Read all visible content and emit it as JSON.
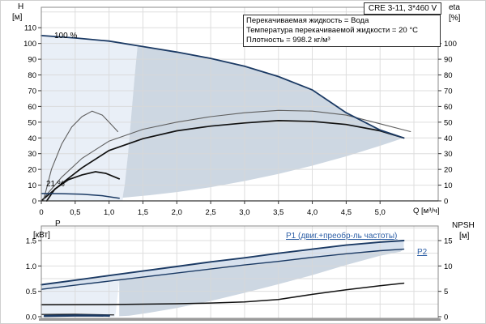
{
  "window": {
    "title_box": "CRE 3-11, 3*460 V"
  },
  "info_box": {
    "line1": "Перекачиваемая жидкость = Вода",
    "line2": "Температура перекачиваемой жидкости = 20 °C",
    "line3": "Плотность = 998.2 кг/м³"
  },
  "labels": {
    "h_axis": "H",
    "h_unit": "[м]",
    "eta_axis": "eta",
    "eta_unit": "[%]",
    "q_axis": "Q [м³/ч]",
    "p_axis": "P",
    "p_unit": "[кВт]",
    "npsh_axis": "NPSH",
    "npsh_unit": "[м]",
    "speed_100": "100 %",
    "speed_21": "21 %",
    "p1_curve": "P1 (двиг.+преобр-ль частоты)",
    "p2_curve": "P2"
  },
  "colors": {
    "navy_curve": "#1b3a64",
    "gray_curve": "#5f5f5f",
    "black_curve": "#111111",
    "light_fill": "#e9eff7",
    "dark_fill": "#cdd7e2",
    "band_fill": "#d7e1ee",
    "grid": "#d8d8d8",
    "frame": "#8a8a8a",
    "axis_dark": "#333333",
    "label_blue": "#2d5fa6",
    "bottom_bar": "#9a9a9a"
  },
  "chart_data": [
    {
      "type": "line",
      "name": "qh-eta-chart",
      "title": "CRE 3-11, 3*460 V",
      "xlabel": "Q [м³/ч]",
      "ylabel_left": "H [м]",
      "ylabel_right": "eta [%]",
      "x_range": [
        0,
        5.86
      ],
      "y_range": [
        0,
        123
      ],
      "x_axis": {
        "values": [
          0,
          0.5,
          1,
          1.5,
          2,
          2.5,
          3,
          3.5,
          4,
          4.5,
          5
        ],
        "labels": [
          "0",
          "0,5",
          "1,0",
          "1,5",
          "2,0",
          "2,5",
          "3,0",
          "3,5",
          "4,0",
          "4,5",
          "5,0"
        ],
        "grid": [
          0.5,
          1,
          1.5,
          2,
          2.5,
          3,
          3.5,
          4,
          4.5,
          5,
          5.5
        ]
      },
      "y_left": {
        "values": [
          0,
          10,
          20,
          30,
          40,
          50,
          60,
          70,
          80,
          90,
          100,
          110
        ],
        "grid": [
          10,
          20,
          30,
          40,
          50,
          60,
          70,
          80,
          90,
          100,
          110,
          120
        ]
      },
      "y_right": {
        "values": [
          0,
          10,
          20,
          30,
          40,
          50,
          60,
          70,
          80,
          90,
          100
        ]
      },
      "regions": [
        {
          "name": "speed-envelope-light",
          "color": "#e9eff7",
          "points": [
            [
              0,
              0
            ],
            [
              0,
              105
            ],
            [
              0.5,
              103.5
            ],
            [
              1,
              101.5
            ],
            [
              1.42,
              98.3
            ],
            [
              1.38,
              80
            ],
            [
              1.33,
              55
            ],
            [
              1.28,
              30
            ],
            [
              1.23,
              10
            ],
            [
              1.2,
              0
            ]
          ]
        },
        {
          "name": "duty-range-dark",
          "color": "#cdd7e2",
          "points": [
            [
              1.42,
              98.3
            ],
            [
              1.5,
              98
            ],
            [
              2,
              94.5
            ],
            [
              2.5,
              90.5
            ],
            [
              3,
              85.5
            ],
            [
              3.5,
              79
            ],
            [
              4,
              70.5
            ],
            [
              4.5,
              56
            ],
            [
              5,
              45
            ],
            [
              5.35,
              40
            ],
            [
              5,
              35
            ],
            [
              4.5,
              28.3
            ],
            [
              4,
              22.4
            ],
            [
              3.5,
              17.1
            ],
            [
              3,
              12.6
            ],
            [
              2.5,
              8.7
            ],
            [
              2,
              5.6
            ],
            [
              1.6,
              3.6
            ],
            [
              1.2,
              2
            ],
            [
              1.23,
              10
            ],
            [
              1.28,
              30
            ],
            [
              1.33,
              55
            ],
            [
              1.38,
              80
            ]
          ]
        }
      ],
      "series": [
        {
          "name": "eta-pump-100",
          "color": "#5f5f5f",
          "width": 1.1,
          "axis": "eta",
          "points": [
            [
              0,
              0
            ],
            [
              0.3,
              15
            ],
            [
              0.6,
              27
            ],
            [
              1,
              38
            ],
            [
              1.5,
              45.5
            ],
            [
              2,
              50
            ],
            [
              2.5,
              53.5
            ],
            [
              3,
              56
            ],
            [
              3.5,
              57.5
            ],
            [
              4,
              57
            ],
            [
              4.5,
              54.5
            ],
            [
              5,
              49
            ],
            [
              5.45,
              44
            ]
          ]
        },
        {
          "name": "eta-total-100",
          "color": "#111111",
          "width": 1.7,
          "axis": "eta",
          "points": [
            [
              0,
              0
            ],
            [
              0.3,
              11
            ],
            [
              0.6,
              21
            ],
            [
              1,
              32
            ],
            [
              1.5,
              39.5
            ],
            [
              2,
              44.5
            ],
            [
              2.5,
              47.5
            ],
            [
              3,
              49.5
            ],
            [
              3.5,
              51
            ],
            [
              4,
              50.5
            ],
            [
              4.5,
              48.5
            ],
            [
              5,
              44.5
            ],
            [
              5.35,
              40
            ]
          ]
        },
        {
          "name": "h-100",
          "color": "#1b3a64",
          "width": 1.8,
          "axis": "h",
          "points": [
            [
              0,
              105
            ],
            [
              0.5,
              103.5
            ],
            [
              1,
              101.5
            ],
            [
              1.5,
              98
            ],
            [
              2,
              94.5
            ],
            [
              2.5,
              90.5
            ],
            [
              3,
              85.5
            ],
            [
              3.5,
              79
            ],
            [
              4,
              70.5
            ],
            [
              4.5,
              56
            ],
            [
              5,
              45
            ],
            [
              5.35,
              40
            ]
          ]
        },
        {
          "name": "eta-pump-21",
          "color": "#5f5f5f",
          "width": 1.1,
          "axis": "eta",
          "points": [
            [
              0.03,
              0
            ],
            [
              0.15,
              20
            ],
            [
              0.3,
              36
            ],
            [
              0.45,
              47
            ],
            [
              0.6,
              53.5
            ],
            [
              0.75,
              57
            ],
            [
              0.9,
              54.5
            ],
            [
              1.0,
              50
            ],
            [
              1.13,
              44
            ]
          ]
        },
        {
          "name": "eta-total-21",
          "color": "#111111",
          "width": 1.7,
          "axis": "eta",
          "points": [
            [
              0.08,
              0
            ],
            [
              0.2,
              7.5
            ],
            [
              0.4,
              13.5
            ],
            [
              0.6,
              16.5
            ],
            [
              0.8,
              18.5
            ],
            [
              0.95,
              17.5
            ],
            [
              1.15,
              14
            ]
          ]
        },
        {
          "name": "h-21",
          "color": "#1b3a64",
          "width": 1.5,
          "axis": "h",
          "points": [
            [
              0,
              4.7
            ],
            [
              0.3,
              4.6
            ],
            [
              0.6,
              4.2
            ],
            [
              0.9,
              3.3
            ],
            [
              1.15,
              1.7
            ]
          ]
        }
      ]
    },
    {
      "type": "line",
      "name": "power-npsh-chart",
      "xlabel": "",
      "ylabel_left": "P [кВт]",
      "ylabel_right": "NPSH [м]",
      "x_range": [
        0,
        5.86
      ],
      "y_range_p": [
        0,
        1.79
      ],
      "y_range_npsh": [
        0,
        17.9
      ],
      "x_axis": {
        "values": [],
        "labels": [],
        "grid": [
          0.5,
          1,
          1.5,
          2,
          2.5,
          3,
          3.5,
          4,
          4.5,
          5,
          5.5
        ]
      },
      "y_left": {
        "values": [
          0,
          0.5,
          1,
          1.5
        ],
        "labels": [
          "0.0",
          "0.5",
          "1.0",
          "1.5"
        ],
        "grid": [
          0.25,
          0.5,
          0.75,
          1,
          1.25,
          1.5,
          1.75
        ]
      },
      "y_right": {
        "values": [
          0,
          5,
          10,
          15
        ],
        "labels": [
          "0",
          "5",
          "10",
          "15"
        ]
      },
      "regions": [
        {
          "name": "p1-p2-band",
          "color": "#d7e1ee",
          "points": [
            [
              0,
              0.63
            ],
            [
              0.5,
              0.72
            ],
            [
              1,
              0.81
            ],
            [
              1.5,
              0.9
            ],
            [
              2,
              0.99
            ],
            [
              2.5,
              1.08
            ],
            [
              3,
              1.16
            ],
            [
              3.5,
              1.25
            ],
            [
              4,
              1.33
            ],
            [
              4.5,
              1.41
            ],
            [
              5,
              1.47
            ],
            [
              5.35,
              1.5
            ],
            [
              5.35,
              1.33
            ],
            [
              5,
              1.3
            ],
            [
              4.5,
              1.24
            ],
            [
              4,
              1.17
            ],
            [
              3.5,
              1.09
            ],
            [
              3,
              1.02
            ],
            [
              2.5,
              0.94
            ],
            [
              2,
              0.86
            ],
            [
              1.5,
              0.78
            ],
            [
              1,
              0.7
            ],
            [
              0.5,
              0.62
            ],
            [
              0,
              0.54
            ]
          ]
        },
        {
          "name": "power-light",
          "color": "#e9eff7",
          "points": [
            [
              0,
              0
            ],
            [
              0,
              0.54
            ],
            [
              0.5,
              0.62
            ],
            [
              1,
              0.7
            ],
            [
              1.15,
              0.72
            ],
            [
              1.12,
              0.35
            ],
            [
              1.1,
              0.08
            ],
            [
              1.08,
              0
            ]
          ]
        },
        {
          "name": "power-duty-dark",
          "color": "#cdd7e2",
          "points": [
            [
              1.15,
              0.72
            ],
            [
              1.5,
              0.78
            ],
            [
              2,
              0.86
            ],
            [
              2.5,
              0.94
            ],
            [
              3,
              1.02
            ],
            [
              3.5,
              1.09
            ],
            [
              4,
              1.17
            ],
            [
              4.5,
              1.24
            ],
            [
              5,
              1.3
            ],
            [
              5.35,
              1.33
            ],
            [
              5.3,
              1.28
            ],
            [
              5,
              1.2
            ],
            [
              4.5,
              1.02
            ],
            [
              4,
              0.82
            ],
            [
              3.5,
              0.64
            ],
            [
              3,
              0.47
            ],
            [
              2.5,
              0.31
            ],
            [
              2,
              0.17
            ],
            [
              1.6,
              0.08
            ],
            [
              1.3,
              0.02
            ],
            [
              1.15,
              0.01
            ]
          ]
        }
      ],
      "series": [
        {
          "name": "npsh",
          "color": "#111111",
          "width": 1.5,
          "axis": "npsh",
          "points": [
            [
              0,
              2.35
            ],
            [
              1,
              2.4
            ],
            [
              2,
              2.55
            ],
            [
              2.5,
              2.7
            ],
            [
              3,
              2.9
            ],
            [
              3.5,
              3.4
            ],
            [
              4,
              4.4
            ],
            [
              4.5,
              5.3
            ],
            [
              5,
              6.1
            ],
            [
              5.35,
              6.6
            ]
          ]
        },
        {
          "name": "p2",
          "color": "#1b3a64",
          "width": 1.4,
          "axis": "p",
          "points": [
            [
              0,
              0.54
            ],
            [
              0.5,
              0.62
            ],
            [
              1,
              0.7
            ],
            [
              1.5,
              0.78
            ],
            [
              2,
              0.86
            ],
            [
              2.5,
              0.94
            ],
            [
              3,
              1.02
            ],
            [
              3.5,
              1.09
            ],
            [
              4,
              1.17
            ],
            [
              4.5,
              1.24
            ],
            [
              5,
              1.3
            ],
            [
              5.35,
              1.33
            ]
          ]
        },
        {
          "name": "p1",
          "color": "#1b3a64",
          "width": 1.9,
          "axis": "p",
          "points": [
            [
              0,
              0.63
            ],
            [
              0.5,
              0.72
            ],
            [
              1,
              0.81
            ],
            [
              1.5,
              0.9
            ],
            [
              2,
              0.99
            ],
            [
              2.5,
              1.08
            ],
            [
              3,
              1.16
            ],
            [
              3.5,
              1.25
            ],
            [
              4,
              1.33
            ],
            [
              4.5,
              1.41
            ],
            [
              5,
              1.47
            ],
            [
              5.35,
              1.5
            ]
          ]
        },
        {
          "name": "p2-21",
          "color": "#111111",
          "width": 1.1,
          "axis": "p",
          "points": [
            [
              0,
              0.045
            ],
            [
              0.5,
              0.05
            ],
            [
              1.07,
              0.035
            ]
          ]
        },
        {
          "name": "p1-21",
          "color": "#1b3a64",
          "width": 2.6,
          "axis": "p",
          "points": [
            [
              0.05,
              0.015
            ],
            [
              0.6,
              0.025
            ],
            [
              1.0,
              0.02
            ]
          ]
        }
      ]
    }
  ]
}
